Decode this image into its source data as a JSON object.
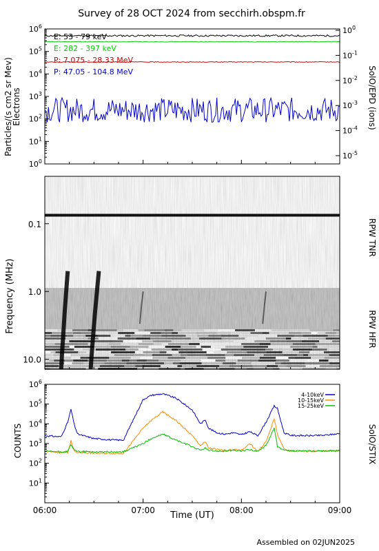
{
  "header": {
    "title": "Survey of 28 OCT 2024 from secchirh.obspm.fr",
    "footer": "Assembled on 02JUN2025"
  },
  "chart_data": [
    {
      "type": "line",
      "panel": "particles",
      "ylabel": "Particles/(s cm2 sr Mev)",
      "ylabel2": "Electrons",
      "right_label": "SolO/EPD (ions)",
      "yscale": "log",
      "ylim": [
        1,
        1000000
      ],
      "y2lim": [
        1e-05,
        1
      ],
      "yticks": [
        "10^0",
        "10^1",
        "10^2",
        "10^3",
        "10^4",
        "10^5",
        "10^6"
      ],
      "y2ticks": [
        "10^-5",
        "10^-4",
        "10^-3",
        "10^-2",
        "10^-1",
        "10^0"
      ],
      "xlim": [
        "06:00",
        "09:00"
      ],
      "series": [
        {
          "name": "E: 53 - 79 keV",
          "color": "#000000",
          "level": 500000
        },
        {
          "name": "E: 282 - 397 keV",
          "color": "#00d000",
          "level": 270000
        },
        {
          "name": "P: 7.075 - 28.33 MeV",
          "color": "#cc0000",
          "level": 34000
        },
        {
          "name": "P: 47.05 - 104.8 MeV",
          "color": "#0000cc",
          "level": 250
        }
      ]
    },
    {
      "type": "heatmap",
      "panel": "radio",
      "ylabel": "Frequency (MHz)",
      "right_labels": [
        "RPW TNR",
        "RPW HFR"
      ],
      "yscale": "log",
      "ylim": [
        14,
        0.02
      ],
      "yticks": [
        "0.1",
        "1.0",
        "10.0"
      ],
      "features": [
        {
          "label": "type III burst",
          "start": "06:10",
          "end": "06:14"
        },
        {
          "label": "type III burst",
          "start": "06:28",
          "end": "06:33"
        },
        {
          "label": "type III burst",
          "start": "06:58",
          "end": "07:00"
        },
        {
          "label": "type III burst",
          "start": "08:13",
          "end": "08:15"
        }
      ],
      "band_line_mhz": 0.075
    },
    {
      "type": "line",
      "panel": "xray",
      "ylabel": "COUNTS",
      "right_label": "SolO/STIX",
      "xlabel": "Time (UT)",
      "yscale": "log",
      "ylim": [
        1,
        1000000
      ],
      "yticks": [
        "10^1",
        "10^2",
        "10^3",
        "10^4",
        "10^5",
        "10^6"
      ],
      "xticks": [
        "06:00",
        "07:00",
        "08:00",
        "09:00"
      ],
      "legend_position": "top-right",
      "x_minutes": [
        0,
        10,
        14,
        16,
        18,
        20,
        30,
        38,
        42,
        45,
        48,
        60,
        65,
        72,
        80,
        90,
        95,
        98,
        100,
        105,
        110,
        115,
        120,
        125,
        130,
        135,
        140,
        142,
        146,
        150,
        160,
        170,
        180
      ],
      "series": [
        {
          "name": "4-10keV",
          "color": "#0000cc",
          "values": [
            2500,
            2200,
            12000,
            55000,
            9000,
            3000,
            1800,
            1600,
            1500,
            1500,
            1500,
            170000,
            280000,
            330000,
            200000,
            50000,
            10000,
            16000,
            6000,
            3500,
            3000,
            3500,
            2800,
            4000,
            2500,
            12000,
            80000,
            60000,
            3500,
            2600,
            2500,
            2600,
            3200
          ]
        },
        {
          "name": "10-15keV",
          "color": "#ff8c00",
          "values": [
            400,
            350,
            350,
            1400,
            400,
            350,
            330,
            320,
            320,
            320,
            320,
            6000,
            15000,
            40000,
            15000,
            2500,
            800,
            1200,
            600,
            500,
            450,
            500,
            450,
            1000,
            400,
            1200,
            18000,
            3000,
            500,
            420,
            400,
            420,
            450
          ]
        },
        {
          "name": "15-25keV",
          "color": "#00c000",
          "values": [
            400,
            380,
            400,
            900,
            450,
            400,
            380,
            380,
            380,
            380,
            380,
            1000,
            1800,
            3000,
            1500,
            700,
            450,
            600,
            450,
            420,
            420,
            450,
            420,
            500,
            400,
            800,
            6000,
            700,
            450,
            420,
            420,
            420,
            430
          ]
        }
      ]
    }
  ]
}
